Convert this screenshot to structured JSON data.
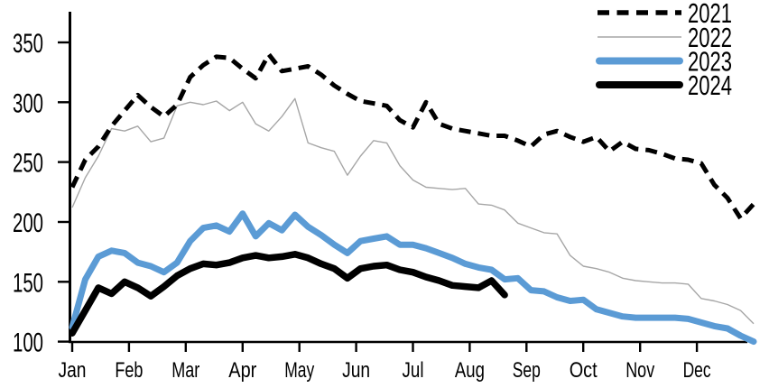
{
  "chart_data": {
    "type": "line",
    "title": "",
    "xlabel": "",
    "ylabel": "",
    "x_unit": "week-of-year",
    "months": [
      "Jan",
      "Feb",
      "Mar",
      "Apr",
      "May",
      "Jun",
      "Jul",
      "Aug",
      "Sep",
      "Oct",
      "Nov",
      "Dec"
    ],
    "y_ticks": [
      100,
      150,
      200,
      250,
      300,
      350
    ],
    "ylim": [
      100,
      355
    ],
    "xlim_weeks": [
      0,
      52
    ],
    "grid": false,
    "legend_position": "top-right",
    "series": [
      {
        "name": "2021",
        "color": "#000000",
        "style": "dashed",
        "values": [
          229,
          252,
          263,
          280,
          293,
          306,
          296,
          288,
          298,
          321,
          331,
          338,
          337,
          328,
          320,
          340,
          326,
          328,
          330,
          323,
          314,
          307,
          301,
          299,
          297,
          285,
          279,
          300,
          282,
          278,
          276,
          274,
          272,
          272,
          268,
          263,
          273,
          276,
          271,
          267,
          271,
          259,
          267,
          261,
          260,
          257,
          253,
          252,
          249,
          231,
          220,
          203,
          215
        ]
      },
      {
        "name": "2022",
        "color": "#a6a6a6",
        "style": "solid-thin",
        "values": [
          212,
          237,
          255,
          278,
          276,
          280,
          267,
          270,
          297,
          300,
          298,
          301,
          293,
          300,
          282,
          276,
          288,
          303,
          266,
          262,
          259,
          239,
          255,
          268,
          266,
          247,
          235,
          229,
          228,
          227,
          228,
          215,
          214,
          210,
          199,
          195,
          191,
          190,
          172,
          163,
          161,
          158,
          153,
          151,
          150,
          149,
          149,
          148,
          136,
          134,
          131,
          126,
          115
        ]
      },
      {
        "name": "2023",
        "color": "#5b9bd5",
        "style": "solid-thick",
        "values": [
          112,
          152,
          171,
          176,
          174,
          166,
          163,
          158,
          166,
          184,
          195,
          197,
          192,
          207,
          188,
          199,
          193,
          206,
          196,
          189,
          181,
          174,
          184,
          186,
          188,
          181,
          181,
          178,
          174,
          170,
          165,
          162,
          160,
          152,
          153,
          143,
          142,
          137,
          134,
          135,
          127,
          124,
          121,
          120,
          120,
          120,
          120,
          119,
          116,
          113,
          111,
          105,
          100
        ]
      },
      {
        "name": "2024",
        "color": "#000000",
        "style": "solid-thick",
        "values": [
          107,
          126,
          145,
          140,
          150,
          145,
          138,
          146,
          155,
          161,
          165,
          164,
          166,
          170,
          172,
          170,
          171,
          173,
          170,
          165,
          161,
          153,
          161,
          163,
          164,
          160,
          158,
          154,
          151,
          147,
          146,
          145,
          151,
          139
        ]
      }
    ]
  }
}
